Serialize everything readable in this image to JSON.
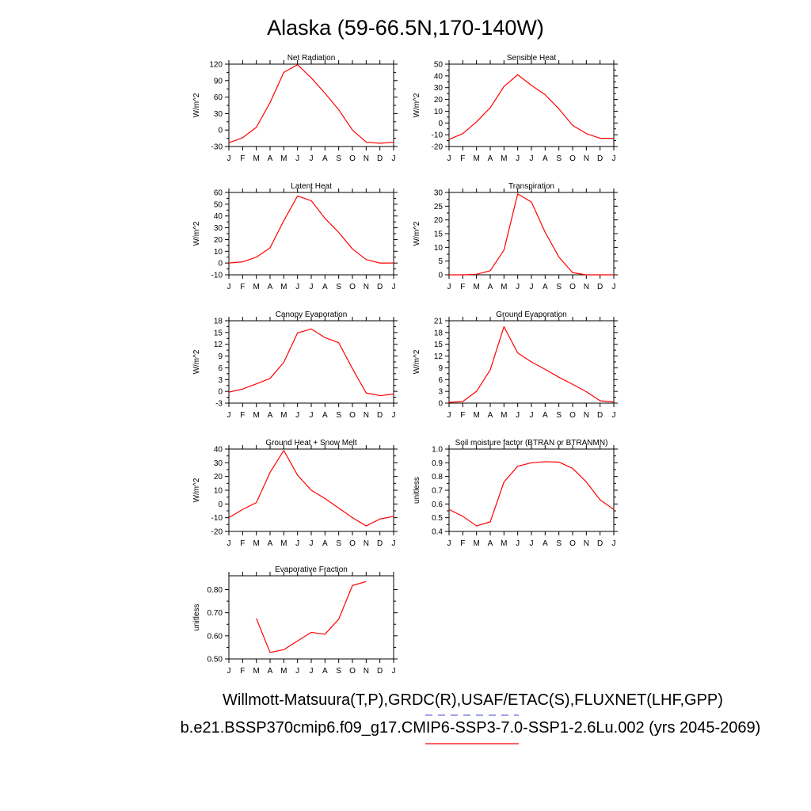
{
  "title": "Alaska (59-66.5N,170-140W)",
  "footer": {
    "line1": "Willmott-Matsuura(T,P),GRDC(R),USAF/ETAC(S),FLUXNET(LHF,GPP)",
    "line2": "b.e21.BSSP370cmip6.f09_g17.CMIP6-SSP3-7.0-SSP1-2.6Lu.002 (yrs 2045-2069)",
    "line1_marker_color": "#6a6ae0",
    "line2_marker_color": "#ff0000"
  },
  "colors": {
    "series": "#ff0000",
    "axes": "#000000"
  },
  "months": [
    "J",
    "F",
    "M",
    "A",
    "M",
    "J",
    "J",
    "A",
    "S",
    "O",
    "N",
    "D",
    "J"
  ],
  "chart_data": [
    {
      "type": "line",
      "title": "Net Radiation",
      "ylabel": "W/m^2",
      "ylim": [
        -30,
        120
      ],
      "yticks": [
        -30,
        0,
        30,
        60,
        90,
        120
      ],
      "ytick_labels": [
        "-30",
        "0",
        "30",
        "60",
        "90",
        "120"
      ],
      "values": [
        -23,
        -14,
        5,
        50,
        105,
        119,
        95,
        67,
        37,
        0,
        -22,
        -24,
        -22
      ]
    },
    {
      "type": "line",
      "title": "Sensible Heat",
      "ylabel": "W/m^2",
      "ylim": [
        -20,
        50
      ],
      "yticks": [
        -20,
        -10,
        0,
        10,
        20,
        30,
        40,
        50
      ],
      "ytick_labels": [
        "-20",
        "-10",
        "0",
        "10",
        "20",
        "30",
        "40",
        "50"
      ],
      "values": [
        -14,
        -9,
        1,
        13,
        31,
        41,
        32,
        24,
        12,
        -2,
        -9,
        -13,
        -13
      ]
    },
    {
      "type": "line",
      "title": "Latent Heat",
      "ylabel": "W/m^2",
      "ylim": [
        -10,
        60
      ],
      "yticks": [
        -10,
        0,
        10,
        20,
        30,
        40,
        50,
        60
      ],
      "ytick_labels": [
        "-10",
        "0",
        "10",
        "20",
        "30",
        "40",
        "50",
        "60"
      ],
      "values": [
        0,
        1,
        5,
        13,
        36,
        57,
        53,
        38,
        26,
        12,
        3,
        0,
        0
      ]
    },
    {
      "type": "line",
      "title": "Transpiration",
      "ylabel": "W/m^2",
      "ylim": [
        0,
        30
      ],
      "yticks": [
        0,
        5,
        10,
        15,
        20,
        25,
        30
      ],
      "ytick_labels": [
        "0",
        "5",
        "10",
        "15",
        "20",
        "25",
        "30"
      ],
      "values": [
        0,
        0,
        0.2,
        1.5,
        9,
        29.5,
        26.5,
        15.5,
        6.5,
        0.8,
        0,
        0,
        0
      ]
    },
    {
      "type": "line",
      "title": "Canopy Evaporation",
      "ylabel": "W/m^2",
      "ylim": [
        -3,
        18
      ],
      "yticks": [
        -3,
        0,
        3,
        6,
        9,
        12,
        15,
        18
      ],
      "ytick_labels": [
        "-3",
        "0",
        "3",
        "6",
        "9",
        "12",
        "15",
        "18"
      ],
      "values": [
        -0.2,
        0.6,
        1.9,
        3.3,
        7.4,
        14.9,
        15.9,
        13.7,
        12.4,
        5.8,
        -0.4,
        -1.1,
        -0.7
      ]
    },
    {
      "type": "line",
      "title": "Ground Evaporation",
      "ylabel": "W/m^2",
      "ylim": [
        0,
        21
      ],
      "yticks": [
        0,
        3,
        6,
        9,
        12,
        15,
        18,
        21
      ],
      "ytick_labels": [
        "0",
        "3",
        "6",
        "9",
        "12",
        "15",
        "18",
        "21"
      ],
      "values": [
        0.2,
        0.4,
        3,
        8.5,
        19.5,
        12.8,
        10.5,
        8.6,
        6.6,
        4.8,
        2.9,
        0.6,
        0.3
      ]
    },
    {
      "type": "line",
      "title": "Ground Heat + Snow Melt",
      "ylabel": "W/m^2",
      "ylim": [
        -20,
        40
      ],
      "yticks": [
        -20,
        -10,
        0,
        10,
        20,
        30,
        40
      ],
      "ytick_labels": [
        "-20",
        "-10",
        "0",
        "10",
        "20",
        "30",
        "40"
      ],
      "values": [
        -10,
        -4,
        1,
        23,
        39,
        21,
        10,
        4,
        -3,
        -10,
        -16,
        -11,
        -9
      ]
    },
    {
      "type": "line",
      "title": "Soil moisture factor (BTRAN or BTRANMN)",
      "ylabel": "unitless",
      "ylim": [
        0.4,
        1.0
      ],
      "yticks": [
        0.4,
        0.5,
        0.6,
        0.7,
        0.8,
        0.9,
        1.0
      ],
      "ytick_labels": [
        "0.4",
        "0.5",
        "0.6",
        "0.7",
        "0.8",
        "0.9",
        "1.0"
      ],
      "values": [
        0.56,
        0.51,
        0.44,
        0.47,
        0.76,
        0.875,
        0.9,
        0.908,
        0.905,
        0.86,
        0.76,
        0.63,
        0.56
      ]
    },
    {
      "type": "line",
      "title": "Evaporative Fraction",
      "ylabel": "unitless",
      "ylim": [
        0.5,
        0.86
      ],
      "yticks": [
        0.5,
        0.6,
        0.7,
        0.8
      ],
      "ytick_labels": [
        "0.50",
        "0.60",
        "0.70",
        "0.80"
      ],
      "values": [
        null,
        null,
        0.675,
        0.528,
        0.54,
        0.578,
        0.615,
        0.607,
        0.672,
        0.818,
        0.835,
        null,
        null
      ]
    }
  ]
}
